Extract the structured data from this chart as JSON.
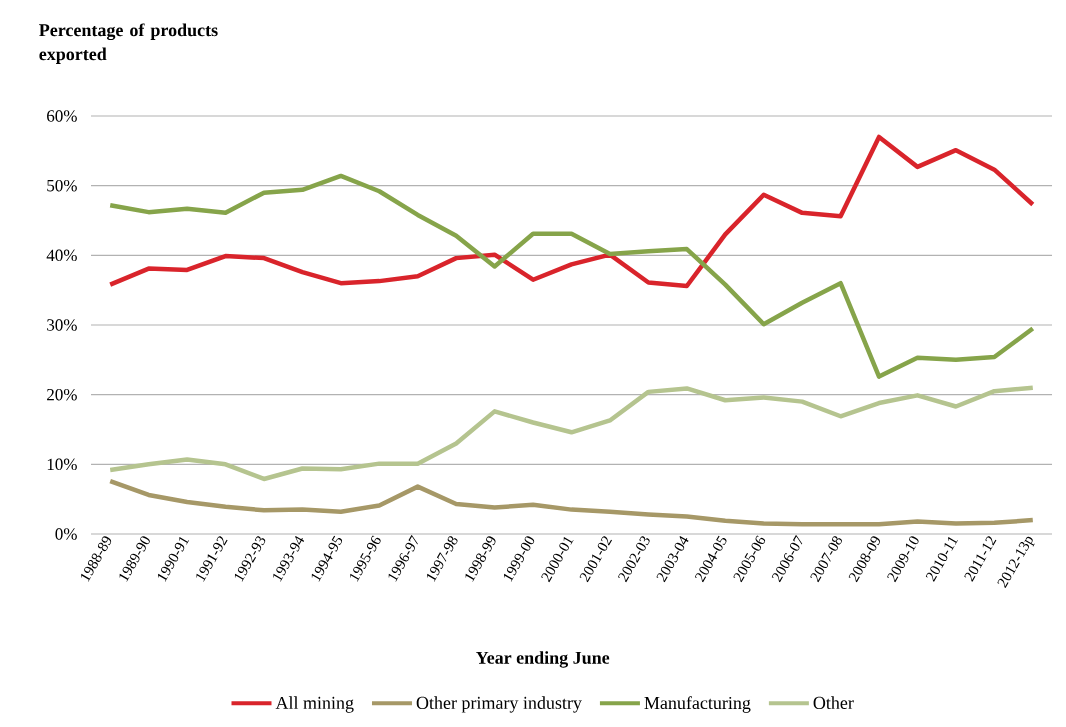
{
  "chart_data": {
    "type": "line",
    "ylabel": "Percentage of products exported",
    "xlabel": "Year ending June",
    "categories": [
      "1988-89",
      "1989-90",
      "1990-91",
      "1991-92",
      "1992-93",
      "1993-94",
      "1994-95",
      "1995-96",
      "1996-97",
      "1997-98",
      "1998-99",
      "1999-00",
      "2000-01",
      "2001-02",
      "2002-03",
      "2003-04",
      "2004-05",
      "2005-06",
      "2006-07",
      "2007-08",
      "2008-09",
      "2009-10",
      "2010-11",
      "2011-12",
      "2012-13p"
    ],
    "series": [
      {
        "name": "All mining",
        "color": "#d9242b",
        "values": [
          35.8,
          38.1,
          37.9,
          39.9,
          39.6,
          37.6,
          36.0,
          36.3,
          37.0,
          39.6,
          40.1,
          36.5,
          38.7,
          40.1,
          36.1,
          35.6,
          43.0,
          48.7,
          46.1,
          45.6,
          57.0,
          52.7,
          55.1,
          52.3,
          47.3
        ]
      },
      {
        "name": "Other primary industry",
        "color": "#a69867",
        "values": [
          7.6,
          5.6,
          4.6,
          3.9,
          3.4,
          3.5,
          3.2,
          4.1,
          6.8,
          4.3,
          3.8,
          4.2,
          3.5,
          3.2,
          2.8,
          2.5,
          1.9,
          1.5,
          1.4,
          1.4,
          1.4,
          1.8,
          1.5,
          1.6,
          2.0
        ]
      },
      {
        "name": "Manufacturing",
        "color": "#86a44a",
        "values": [
          47.2,
          46.2,
          46.7,
          46.1,
          49.0,
          49.4,
          51.4,
          49.2,
          45.8,
          42.8,
          38.4,
          43.1,
          43.1,
          40.2,
          40.6,
          40.9,
          35.8,
          30.1,
          33.2,
          36.0,
          22.6,
          25.3,
          25.0,
          25.4,
          29.5
        ]
      },
      {
        "name": "Other",
        "color": "#b5c48f",
        "values": [
          9.2,
          10.0,
          10.7,
          10.0,
          7.9,
          9.4,
          9.3,
          10.1,
          10.1,
          13.0,
          17.6,
          16.0,
          14.6,
          16.3,
          20.4,
          20.9,
          19.2,
          19.6,
          19.0,
          16.9,
          18.8,
          19.9,
          18.3,
          20.5,
          21.0
        ]
      }
    ],
    "ylim": [
      0,
      60
    ],
    "yticks": [
      {
        "value": 0,
        "label": "0%"
      },
      {
        "value": 10,
        "label": "10%"
      },
      {
        "value": 20,
        "label": "20%"
      },
      {
        "value": 30,
        "label": "30%"
      },
      {
        "value": 40,
        "label": "40%"
      },
      {
        "value": 50,
        "label": "50%"
      },
      {
        "value": 60,
        "label": "60%"
      }
    ],
    "grid": "y",
    "legend": "bottom",
    "marker": "none",
    "line_style": "solid"
  }
}
